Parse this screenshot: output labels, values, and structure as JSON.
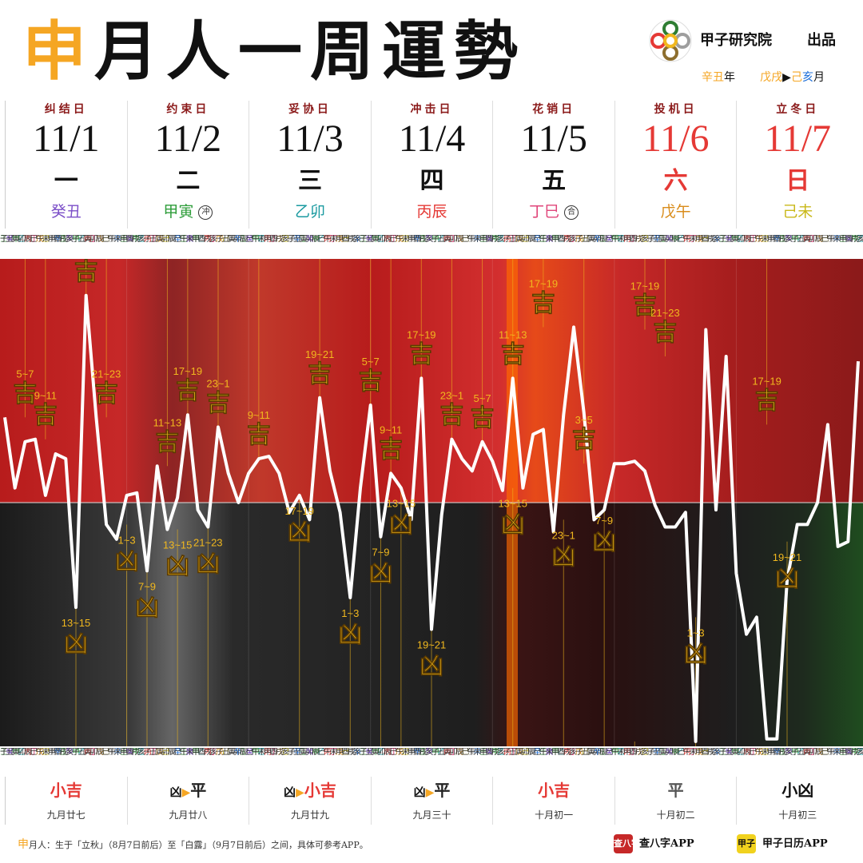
{
  "header": {
    "title_branch": "申",
    "title_rest": "月人一周運勢"
  },
  "brand": {
    "name": "甲子研究院",
    "publish": "出品",
    "year_text": "辛丑",
    "year_suffix": "年",
    "month_from": "戊戌",
    "month_to_a": "己",
    "month_to_b": "亥",
    "month_suffix": "月"
  },
  "days": [
    {
      "event": "纠结日",
      "date": "11/1",
      "weekday": "一",
      "ganzhi": "癸丑",
      "color": "#7b4ec8",
      "mark": "",
      "red": false
    },
    {
      "event": "约束日",
      "date": "11/2",
      "weekday": "二",
      "ganzhi": "甲寅",
      "color": "#2e9d3a",
      "mark": "冲",
      "red": false
    },
    {
      "event": "妥协日",
      "date": "11/3",
      "weekday": "三",
      "ganzhi": "乙卯",
      "color": "#1a9aa0",
      "mark": "",
      "red": false
    },
    {
      "event": "冲击日",
      "date": "11/4",
      "weekday": "四",
      "ganzhi": "丙辰",
      "color": "#e53935",
      "mark": "",
      "red": false
    },
    {
      "event": "花销日",
      "date": "11/5",
      "weekday": "五",
      "ganzhi": "丁巳",
      "color": "#e0457a",
      "mark": "合",
      "red": false
    },
    {
      "event": "投机日",
      "date": "11/6",
      "weekday": "六",
      "ganzhi": "戊午",
      "color": "#d98c1a",
      "mark": "",
      "red": true
    },
    {
      "event": "立冬日",
      "date": "11/7",
      "weekday": "日",
      "ganzhi": "己未",
      "color": "#c9b81a",
      "mark": "",
      "red": true
    }
  ],
  "ruler": {
    "top": [
      "壬",
      "癸",
      "甲",
      "乙",
      "丙",
      "丁",
      "戊",
      "己",
      "庚",
      "辛"
    ],
    "bottom": [
      "子",
      "丑",
      "寅",
      "卯",
      "辰",
      "巳",
      "午",
      "未",
      "申",
      "酉",
      "戌",
      "亥"
    ]
  },
  "chart_data": {
    "type": "line",
    "ylim": [
      -1,
      1
    ],
    "grid": false,
    "x": [
      0,
      0.5,
      1,
      1.5,
      2,
      2.5,
      3,
      3.5,
      4,
      4.5,
      5,
      5.5,
      6,
      6.5,
      7,
      7.5,
      8,
      8.5,
      9,
      9.5,
      10,
      10.5,
      11,
      11.5,
      12,
      12.5,
      13,
      13.5,
      14,
      14.5,
      15,
      15.5,
      16,
      16.5,
      17,
      17.5,
      18,
      18.5,
      19,
      19.5,
      20,
      20.5,
      21,
      21.5,
      22,
      22.5,
      23,
      23.5,
      24,
      24.5,
      25,
      25.5,
      26,
      26.5,
      27,
      27.5,
      28,
      28.5,
      29,
      29.5,
      30,
      30.5,
      31,
      31.5,
      32,
      32.5,
      33,
      33.5,
      34,
      34.5,
      35,
      35.5,
      36,
      36.5,
      37,
      37.5,
      38,
      38.5,
      39,
      39.5,
      40,
      40.5,
      41,
      41.5,
      42
    ],
    "values": [
      0.35,
      0.06,
      0.25,
      0.26,
      0.03,
      0.2,
      0.18,
      -0.43,
      0.85,
      0.35,
      -0.09,
      -0.15,
      0.03,
      0.04,
      -0.28,
      0.15,
      -0.11,
      0.02,
      0.36,
      -0.03,
      -0.1,
      0.31,
      0.12,
      0.0,
      0.12,
      0.18,
      0.19,
      0.12,
      -0.04,
      0.03,
      -0.07,
      0.43,
      0.13,
      -0.04,
      -0.39,
      0.06,
      0.4,
      -0.14,
      0.12,
      0.06,
      -0.07,
      0.51,
      -0.52,
      -0.05,
      0.26,
      0.18,
      0.13,
      0.25,
      0.17,
      0.05,
      0.51,
      0.06,
      0.28,
      0.3,
      -0.12,
      0.36,
      0.72,
      0.37,
      -0.07,
      -0.03,
      0.16,
      0.16,
      0.17,
      0.13,
      -0.01,
      -0.1,
      -0.1,
      -0.04,
      -0.98,
      0.71,
      -0.03,
      0.6,
      -0.29,
      -0.54,
      -0.47,
      -0.97,
      -0.97,
      -0.32,
      -0.09,
      -0.09,
      0.0,
      0.32,
      -0.18,
      -0.16,
      0.58
    ],
    "labels": [
      {
        "x": 1,
        "fortune": "吉",
        "hours": "5~7",
        "v": 0.35
      },
      {
        "x": 2,
        "fortune": "吉",
        "hours": "9~11",
        "v": 0.26
      },
      {
        "x": 3.5,
        "fortune": "凶",
        "hours": "13~15",
        "v": -0.43
      },
      {
        "x": 4,
        "fortune": "吉",
        "hours": "17~19",
        "v": 0.85
      },
      {
        "x": 5,
        "fortune": "吉",
        "hours": "21~23",
        "v": 0.35
      },
      {
        "x": 6,
        "fortune": "凶",
        "hours": "1~3",
        "v": -0.09
      },
      {
        "x": 7,
        "fortune": "凶",
        "hours": "7~9",
        "v": -0.28
      },
      {
        "x": 8,
        "fortune": "吉",
        "hours": "11~13",
        "v": 0.15
      },
      {
        "x": 8.5,
        "fortune": "凶",
        "hours": "13~15",
        "v": -0.11
      },
      {
        "x": 9,
        "fortune": "吉",
        "hours": "17~19",
        "v": 0.36
      },
      {
        "x": 10,
        "fortune": "凶",
        "hours": "21~23",
        "v": -0.1
      },
      {
        "x": 10.5,
        "fortune": "吉",
        "hours": "23~1",
        "v": 0.31
      },
      {
        "x": 12.5,
        "fortune": "吉",
        "hours": "9~11",
        "v": 0.18
      },
      {
        "x": 14.5,
        "fortune": "凶",
        "hours": "17~19",
        "v": 0.03
      },
      {
        "x": 15.5,
        "fortune": "吉",
        "hours": "19~21",
        "v": 0.43
      },
      {
        "x": 17,
        "fortune": "凶",
        "hours": "1~3",
        "v": -0.39
      },
      {
        "x": 18,
        "fortune": "吉",
        "hours": "5~7",
        "v": 0.4
      },
      {
        "x": 18.5,
        "fortune": "凶",
        "hours": "7~9",
        "v": -0.14
      },
      {
        "x": 19,
        "fortune": "吉",
        "hours": "9~11",
        "v": 0.12
      },
      {
        "x": 19.5,
        "fortune": "凶",
        "hours": "13~15",
        "v": 0.06
      },
      {
        "x": 20.5,
        "fortune": "吉",
        "hours": "17~19",
        "v": 0.51
      },
      {
        "x": 21,
        "fortune": "凶",
        "hours": "19~21",
        "v": -0.52
      },
      {
        "x": 22,
        "fortune": "吉",
        "hours": "23~1",
        "v": 0.26
      },
      {
        "x": 23.5,
        "fortune": "吉",
        "hours": "5~7",
        "v": 0.25
      },
      {
        "x": 25,
        "fortune": "吉",
        "hours": "11~13",
        "v": 0.51
      },
      {
        "x": 25,
        "fortune": "凶",
        "hours": "13~15",
        "v": 0.06
      },
      {
        "x": 26.5,
        "fortune": "吉",
        "hours": "17~19",
        "v": 0.72
      },
      {
        "x": 27.5,
        "fortune": "凶",
        "hours": "23~1",
        "v": -0.07
      },
      {
        "x": 28.5,
        "fortune": "吉",
        "hours": "3~5",
        "v": 0.16
      },
      {
        "x": 29.5,
        "fortune": "凶",
        "hours": "7~9",
        "v": -0.01
      },
      {
        "x": 31,
        "fortune": "凶",
        "hours": "13~15",
        "v": -0.98
      },
      {
        "x": 31.5,
        "fortune": "吉",
        "hours": "17~19",
        "v": 0.71
      },
      {
        "x": 32.5,
        "fortune": "吉",
        "hours": "21~23",
        "v": 0.6
      },
      {
        "x": 34,
        "fortune": "凶",
        "hours": "1~3",
        "v": -0.47
      },
      {
        "x": 37.5,
        "fortune": "吉",
        "hours": "17~19",
        "v": 0.32
      },
      {
        "x": 38.5,
        "fortune": "凶",
        "hours": "19~21",
        "v": -0.16
      }
    ],
    "label_colors": {
      "fortune": "#f1b81e"
    }
  },
  "summary": [
    {
      "from": "",
      "to": "小吉",
      "to_color": "#e53935",
      "lunar": "九月廿七"
    },
    {
      "from": "凶",
      "to": "平",
      "to_color": "#222",
      "lunar": "九月廿八"
    },
    {
      "from": "凶",
      "to": "小吉",
      "to_color": "#e53935",
      "lunar": "九月廿九"
    },
    {
      "from": "凶",
      "to": "平",
      "to_color": "#222",
      "lunar": "九月三十"
    },
    {
      "from": "",
      "to": "小吉",
      "to_color": "#e53935",
      "lunar": "十月初一"
    },
    {
      "from": "",
      "to": "平",
      "to_color": "#555",
      "lunar": "十月初二"
    },
    {
      "from": "",
      "to": "小凶",
      "to_color": "#111",
      "lunar": "十月初三"
    }
  ],
  "footer": {
    "branch": "申",
    "text": "月人：生于「立秋」（8月7日前后）至「白露」（9月7日前后）之间，具体可参考APP。",
    "app1_icon": "查八字",
    "app1": "查八字APP",
    "app2_icon": "甲子",
    "app2": "甲子日历APP"
  }
}
